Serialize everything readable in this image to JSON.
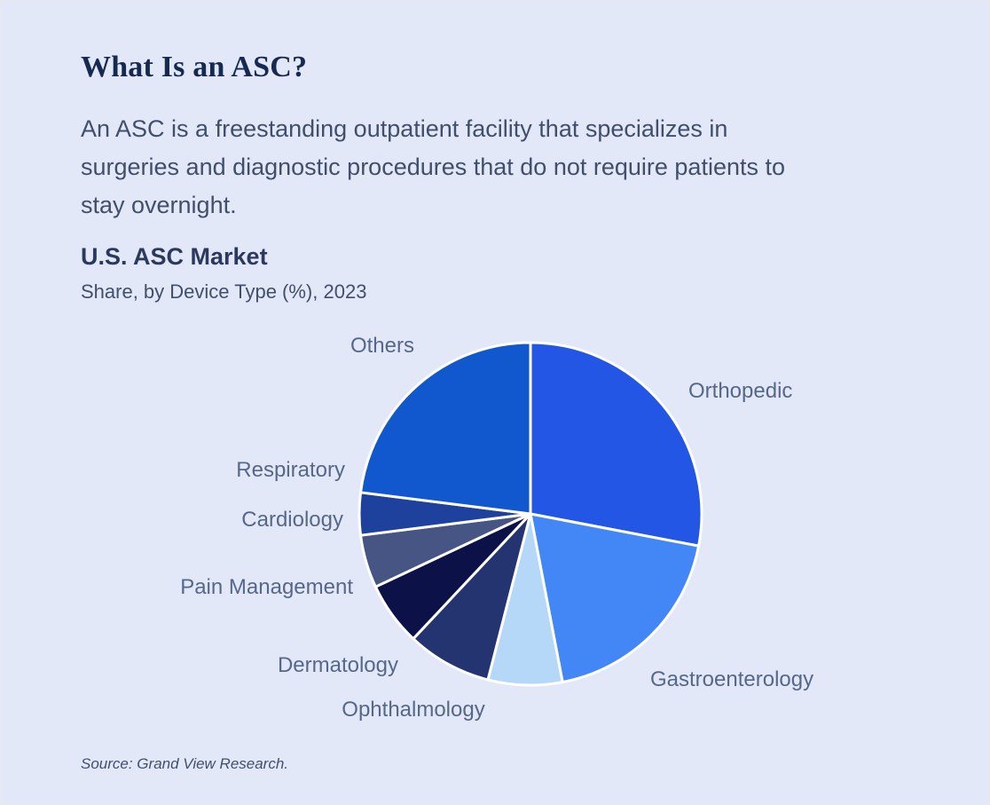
{
  "page": {
    "title": "What Is an ASC?",
    "description": "An ASC is a freestanding outpatient facility that specializes in surgeries and diagnostic procedures that do not require patients to stay overnight.",
    "source": "Source: Grand View Research."
  },
  "chart_data": {
    "type": "pie",
    "title": "U.S. ASC Market",
    "subtitle": "Share, by Device Type (%), 2023",
    "start_angle_deg": 0,
    "direction": "clockwise",
    "data_labels_shown": false,
    "legend_position": "labels-around-pie",
    "separator_color": "#ffffff",
    "label_color": "#55688a",
    "segments": [
      {
        "label": "Orthopedic",
        "value": 28,
        "color": "#2356e4"
      },
      {
        "label": "Gastroenterology",
        "value": 19,
        "color": "#4287f5"
      },
      {
        "label": "Ophthalmology",
        "value": 7,
        "color": "#b5d8f8"
      },
      {
        "label": "Dermatology",
        "value": 8,
        "color": "#243471"
      },
      {
        "label": "Pain Management",
        "value": 6,
        "color": "#0c1247"
      },
      {
        "label": "Cardiology",
        "value": 5,
        "color": "#475584"
      },
      {
        "label": "Respiratory",
        "value": 4,
        "color": "#1e419e"
      },
      {
        "label": "Others",
        "value": 23,
        "color": "#1157cd"
      }
    ]
  }
}
